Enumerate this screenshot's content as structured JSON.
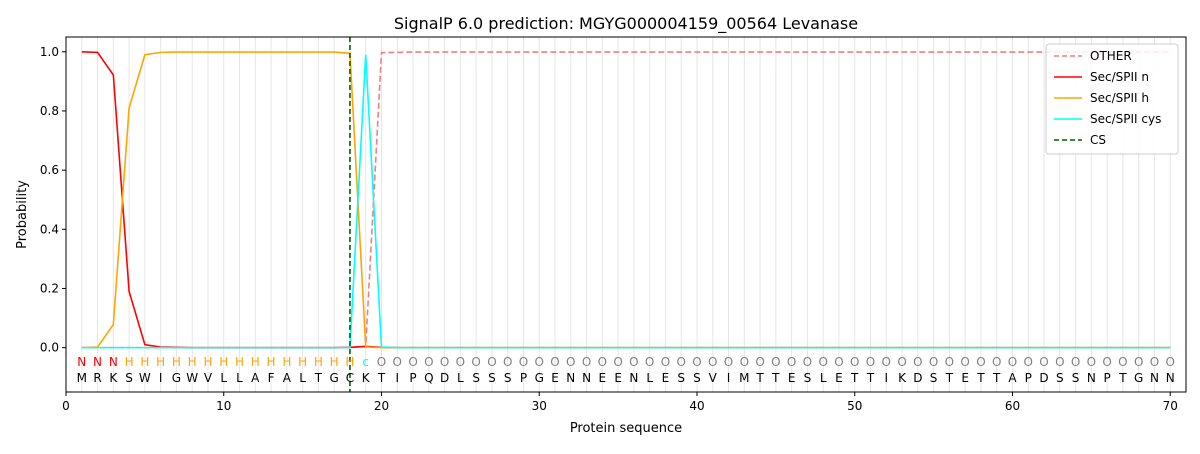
{
  "chart_data": {
    "type": "line",
    "title": "SignalP 6.0 prediction: MGYG000004159_00564 Levanase",
    "xlabel": "Protein sequence",
    "ylabel": "Probability",
    "xlim": [
      0,
      71
    ],
    "ylim": [
      -0.15,
      1.05
    ],
    "xticks": [
      0,
      10,
      20,
      30,
      40,
      50,
      60,
      70
    ],
    "yticks": [
      0.0,
      0.2,
      0.4,
      0.6,
      0.8,
      1.0
    ],
    "ytick_labels": [
      "0.0",
      "0.2",
      "0.4",
      "0.6",
      "0.8",
      "1.0"
    ],
    "legend_position": "top-right",
    "sequence": [
      "M",
      "R",
      "K",
      "S",
      "W",
      "I",
      "G",
      "W",
      "V",
      "L",
      "L",
      "A",
      "F",
      "A",
      "L",
      "T",
      "G",
      "C",
      "K",
      "T",
      "I",
      "P",
      "Q",
      "D",
      "L",
      "S",
      "S",
      "S",
      "P",
      "G",
      "E",
      "N",
      "N",
      "E",
      "E",
      "N",
      "L",
      "E",
      "S",
      "S",
      "V",
      "I",
      "M",
      "T",
      "T",
      "E",
      "S",
      "L",
      "E",
      "T",
      "T",
      "I",
      "K",
      "D",
      "S",
      "T",
      "E",
      "T",
      "T",
      "A",
      "P",
      "D",
      "S",
      "S",
      "N",
      "P",
      "T",
      "G",
      "N",
      "N"
    ],
    "region_labels": [
      "N",
      "N",
      "N",
      "H",
      "H",
      "H",
      "H",
      "H",
      "H",
      "H",
      "H",
      "H",
      "H",
      "H",
      "H",
      "H",
      "H",
      "H",
      "c",
      "O",
      "O",
      "O",
      "O",
      "O",
      "O",
      "O",
      "O",
      "O",
      "O",
      "O",
      "O",
      "O",
      "O",
      "O",
      "O",
      "O",
      "O",
      "O",
      "O",
      "O",
      "O",
      "O",
      "O",
      "O",
      "O",
      "O",
      "O",
      "O",
      "O",
      "O",
      "O",
      "O",
      "O",
      "O",
      "O",
      "O",
      "O",
      "O",
      "O",
      "O",
      "O",
      "O",
      "O",
      "O",
      "O",
      "O",
      "O",
      "O",
      "O",
      "O"
    ],
    "region_colors": {
      "N": "#ff0000",
      "H": "#ffa500",
      "c": "#00ffff",
      "O": "#808080"
    },
    "cs_position": 18,
    "series": [
      {
        "name": "OTHER",
        "color": "#f08080",
        "dashed": true,
        "values": [
          0,
          0,
          0,
          0,
          0,
          0,
          0,
          0,
          0,
          0,
          0,
          0,
          0,
          0,
          0,
          0,
          0,
          0,
          0.004,
          0.997,
          0.998,
          0.999,
          0.999,
          0.999,
          0.999,
          0.999,
          0.999,
          0.999,
          0.999,
          0.999,
          0.999,
          0.999,
          0.999,
          0.999,
          0.999,
          0.999,
          0.999,
          0.999,
          0.999,
          0.999,
          0.999,
          0.999,
          0.999,
          0.999,
          0.999,
          0.999,
          0.999,
          0.999,
          0.999,
          0.999,
          0.999,
          0.999,
          0.999,
          0.999,
          0.999,
          0.999,
          0.999,
          0.999,
          0.999,
          0.999,
          0.999,
          0.999,
          0.999,
          0.999,
          0.999,
          0.999,
          0.999,
          0.999,
          0.999,
          0.999
        ]
      },
      {
        "name": "Sec/SPII n",
        "color": "#ff0000",
        "dashed": false,
        "values": [
          1.0,
          0.998,
          0.922,
          0.19,
          0.01,
          0.002,
          0.001,
          0,
          0,
          0,
          0,
          0,
          0,
          0,
          0,
          0,
          0,
          0.001,
          0.004,
          0.001,
          0,
          0,
          0,
          0,
          0,
          0,
          0,
          0,
          0,
          0,
          0,
          0,
          0,
          0,
          0,
          0,
          0,
          0,
          0,
          0,
          0,
          0,
          0,
          0,
          0,
          0,
          0,
          0,
          0,
          0,
          0,
          0,
          0,
          0,
          0,
          0,
          0,
          0,
          0,
          0,
          0,
          0,
          0,
          0,
          0,
          0,
          0,
          0,
          0,
          0
        ]
      },
      {
        "name": "Sec/SPII h",
        "color": "#ffa500",
        "dashed": false,
        "values": [
          0,
          0.002,
          0.078,
          0.81,
          0.99,
          0.998,
          0.999,
          0.999,
          0.999,
          0.999,
          0.999,
          0.999,
          0.999,
          0.999,
          0.999,
          0.999,
          0.999,
          0.995,
          0.002,
          0,
          0,
          0,
          0,
          0,
          0,
          0,
          0,
          0,
          0,
          0,
          0,
          0,
          0,
          0,
          0,
          0,
          0,
          0,
          0,
          0,
          0,
          0,
          0,
          0,
          0,
          0,
          0,
          0,
          0,
          0,
          0,
          0,
          0,
          0,
          0,
          0,
          0,
          0,
          0,
          0,
          0,
          0,
          0,
          0,
          0,
          0,
          0,
          0,
          0,
          0
        ]
      },
      {
        "name": "Sec/SPII cys",
        "color": "#00ffff",
        "dashed": false,
        "values": [
          0,
          0,
          0,
          0,
          0,
          0,
          0,
          0,
          0,
          0,
          0,
          0,
          0,
          0,
          0,
          0,
          0,
          0,
          0.99,
          0.002,
          0,
          0,
          0,
          0,
          0,
          0,
          0,
          0,
          0,
          0,
          0,
          0,
          0,
          0,
          0,
          0,
          0,
          0,
          0,
          0,
          0,
          0,
          0,
          0,
          0,
          0,
          0,
          0,
          0,
          0,
          0,
          0,
          0,
          0,
          0,
          0,
          0,
          0,
          0,
          0,
          0,
          0,
          0,
          0,
          0,
          0,
          0,
          0,
          0,
          0
        ]
      },
      {
        "name": "CS",
        "color": "#006400",
        "dashed": true,
        "vertical": true
      }
    ]
  }
}
